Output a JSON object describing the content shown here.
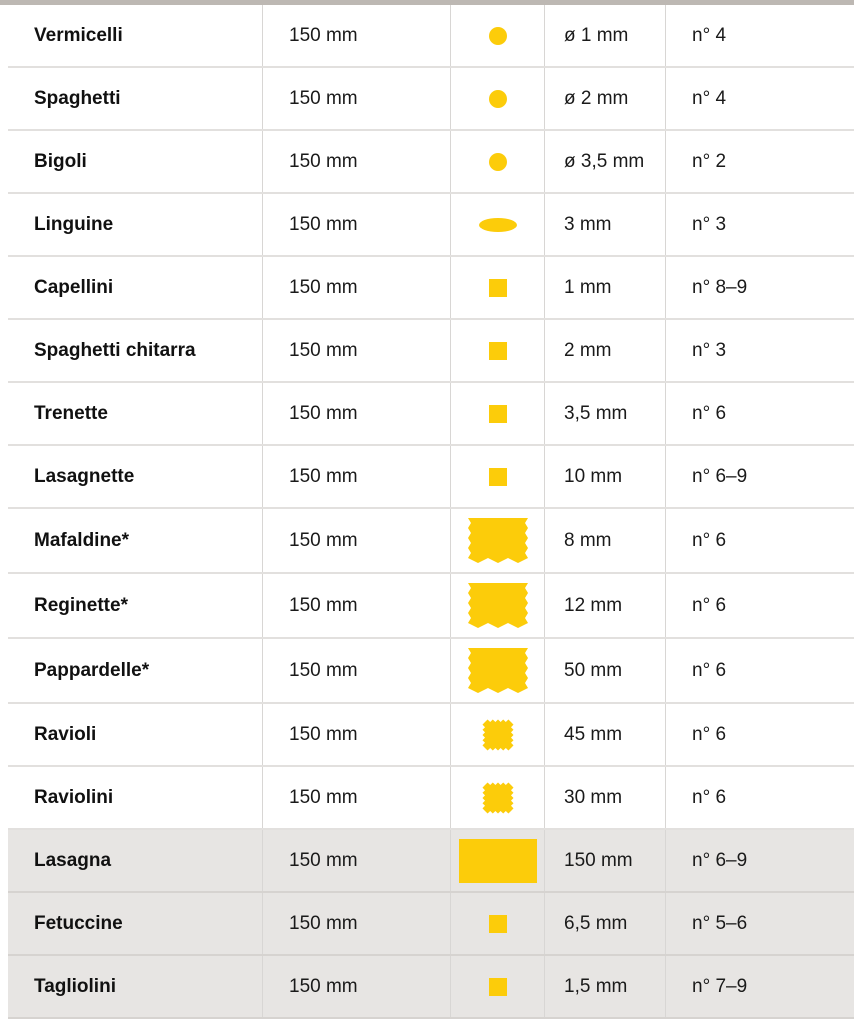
{
  "colors": {
    "shape": "#fccc0a",
    "shaded_row": "#e7e5e3"
  },
  "rows": [
    {
      "name": "Vermicelli",
      "length": "150 mm",
      "shape": "circle",
      "width": "ø 1 mm",
      "setting": "n° 4",
      "shaded": false
    },
    {
      "name": "Spaghetti",
      "length": "150 mm",
      "shape": "circle",
      "width": "ø 2 mm",
      "setting": "n° 4",
      "shaded": false
    },
    {
      "name": "Bigoli",
      "length": "150 mm",
      "shape": "circle",
      "width": "ø 3,5 mm",
      "setting": "n° 2",
      "shaded": false
    },
    {
      "name": "Linguine",
      "length": "150 mm",
      "shape": "ellipse",
      "width": "3 mm",
      "setting": "n° 3",
      "shaded": false
    },
    {
      "name": "Capellini",
      "length": "150 mm",
      "shape": "square",
      "width": "1 mm",
      "setting": "n° 8–9",
      "shaded": false
    },
    {
      "name": "Spaghetti chitarra",
      "length": "150 mm",
      "shape": "square",
      "width": "2 mm",
      "setting": "n° 3",
      "shaded": false
    },
    {
      "name": "Trenette",
      "length": "150 mm",
      "shape": "square",
      "width": "3,5 mm",
      "setting": "n° 6",
      "shaded": false
    },
    {
      "name": "Lasagnette",
      "length": "150 mm",
      "shape": "square",
      "width": "10 mm",
      "setting": "n° 6–9",
      "shaded": false
    },
    {
      "name": "Mafaldine*",
      "length": "150 mm",
      "shape": "wavy-rect",
      "width": "8 mm",
      "setting": "n° 6",
      "shaded": false
    },
    {
      "name": "Reginette*",
      "length": "150 mm",
      "shape": "wavy-rect",
      "width": "12 mm",
      "setting": "n° 6",
      "shaded": false
    },
    {
      "name": "Pappardelle*",
      "length": "150 mm",
      "shape": "wavy-rect",
      "width": "50 mm",
      "setting": "n° 6",
      "shaded": false
    },
    {
      "name": "Ravioli",
      "length": "150 mm",
      "shape": "wavy-square",
      "width": "45 mm",
      "setting": "n° 6",
      "shaded": false
    },
    {
      "name": "Raviolini",
      "length": "150 mm",
      "shape": "wavy-square",
      "width": "30 mm",
      "setting": "n° 6",
      "shaded": false
    },
    {
      "name": "Lasagna",
      "length": "150 mm",
      "shape": "large-rect",
      "width": "150 mm",
      "setting": "n° 6–9",
      "shaded": true
    },
    {
      "name": "Fetuccine",
      "length": "150 mm",
      "shape": "square",
      "width": "6,5 mm",
      "setting": "n° 5–6",
      "shaded": true
    },
    {
      "name": "Tagliolini",
      "length": "150 mm",
      "shape": "square",
      "width": "1,5 mm",
      "setting": "n° 7–9",
      "shaded": true
    }
  ]
}
